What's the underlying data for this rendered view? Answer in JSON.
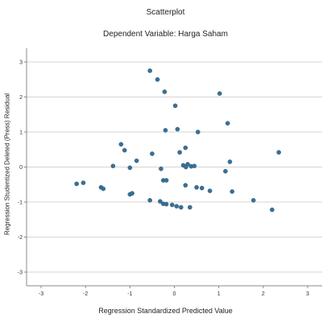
{
  "chart_data": {
    "type": "scatter",
    "title": "Scatterplot",
    "subtitle": "Dependent Variable: Harga Saham",
    "xlabel": "Regression Standardized Predicted Value",
    "ylabel": "Regression Studentized Deleted (Press) Residual",
    "xlim": [
      -3,
      3
    ],
    "ylim": [
      -3,
      3
    ],
    "xticks": [
      "-3",
      "-2",
      "-1",
      "0",
      "1",
      "2",
      "3"
    ],
    "yticks": [
      "3",
      "2",
      "1",
      "0",
      "-1",
      "-2",
      "-3"
    ],
    "grid": "horizontal",
    "point_color": "#3a6f96",
    "points": [
      {
        "x": -0.55,
        "y": 2.75
      },
      {
        "x": -0.38,
        "y": 2.5
      },
      {
        "x": -0.22,
        "y": 2.15
      },
      {
        "x": 1.02,
        "y": 2.1
      },
      {
        "x": 0.02,
        "y": 1.75
      },
      {
        "x": 1.2,
        "y": 1.25
      },
      {
        "x": -0.2,
        "y": 1.05
      },
      {
        "x": 0.07,
        "y": 1.08
      },
      {
        "x": 0.53,
        "y": 1.0
      },
      {
        "x": -1.2,
        "y": 0.65
      },
      {
        "x": -1.12,
        "y": 0.48
      },
      {
        "x": -0.5,
        "y": 0.38
      },
      {
        "x": 0.12,
        "y": 0.42
      },
      {
        "x": 0.25,
        "y": 0.55
      },
      {
        "x": 2.35,
        "y": 0.42
      },
      {
        "x": -0.85,
        "y": 0.18
      },
      {
        "x": 1.25,
        "y": 0.15
      },
      {
        "x": -1.38,
        "y": 0.03
      },
      {
        "x": -1.0,
        "y": -0.02
      },
      {
        "x": -0.3,
        "y": -0.05
      },
      {
        "x": 0.2,
        "y": 0.05
      },
      {
        "x": 0.3,
        "y": 0.08
      },
      {
        "x": 0.38,
        "y": 0.02
      },
      {
        "x": 0.45,
        "y": 0.03
      },
      {
        "x": 0.26,
        "y": 0.0
      },
      {
        "x": 1.15,
        "y": -0.12
      },
      {
        "x": -0.25,
        "y": -0.38
      },
      {
        "x": -0.18,
        "y": -0.38
      },
      {
        "x": -2.2,
        "y": -0.48
      },
      {
        "x": -2.05,
        "y": -0.45
      },
      {
        "x": -1.65,
        "y": -0.58
      },
      {
        "x": -1.6,
        "y": -0.62
      },
      {
        "x": 0.25,
        "y": -0.52
      },
      {
        "x": 0.5,
        "y": -0.58
      },
      {
        "x": 0.62,
        "y": -0.6
      },
      {
        "x": 0.8,
        "y": -0.68
      },
      {
        "x": 1.3,
        "y": -0.7
      },
      {
        "x": -1.0,
        "y": -0.78
      },
      {
        "x": -0.95,
        "y": -0.75
      },
      {
        "x": -0.55,
        "y": -0.95
      },
      {
        "x": -0.32,
        "y": -0.98
      },
      {
        "x": -0.25,
        "y": -1.05
      },
      {
        "x": -0.18,
        "y": -1.06
      },
      {
        "x": -0.05,
        "y": -1.08
      },
      {
        "x": 0.05,
        "y": -1.12
      },
      {
        "x": 0.15,
        "y": -1.15
      },
      {
        "x": 0.35,
        "y": -1.15
      },
      {
        "x": 1.78,
        "y": -0.95
      },
      {
        "x": 2.2,
        "y": -1.22
      }
    ]
  }
}
